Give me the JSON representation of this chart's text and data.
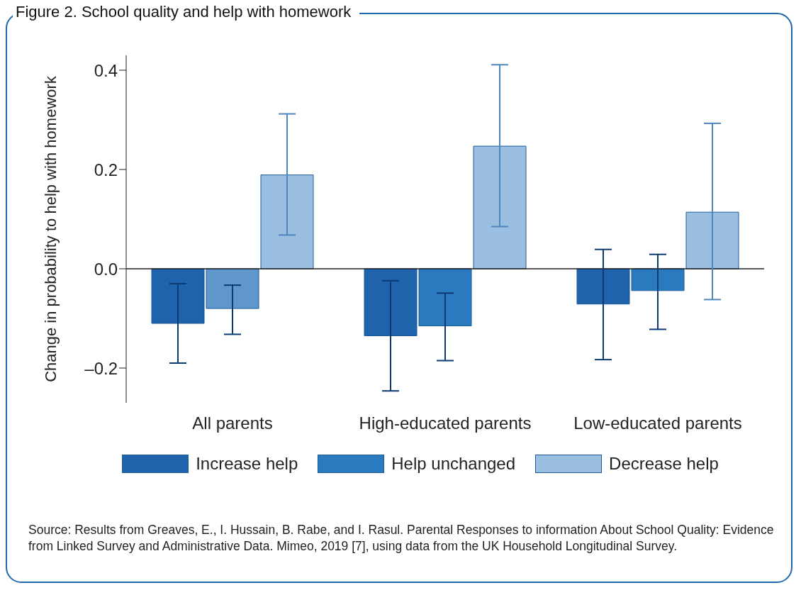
{
  "chart_data": {
    "type": "bar",
    "title": "Figure 2. School quality and help with homework",
    "ylabel": "Change in probability to help with homework",
    "categories": [
      "All parents",
      "High-educated parents",
      "Low-educated parents"
    ],
    "series": [
      {
        "name": "Increase help",
        "color": "#1f63ad",
        "values": [
          -0.11,
          -0.135,
          -0.071
        ],
        "errors": [
          [
            -0.19,
            -0.03
          ],
          [
            -0.246,
            -0.024
          ],
          [
            -0.183,
            0.039
          ]
        ]
      },
      {
        "name": "Help unchanged",
        "color": "#2a7abf",
        "colors": [
          "#5f97cc",
          "#2a7abf",
          "#2a7abf"
        ],
        "values": [
          -0.08,
          -0.115,
          -0.044
        ],
        "errors": [
          [
            -0.132,
            -0.033
          ],
          [
            -0.185,
            -0.049
          ],
          [
            -0.122,
            0.029
          ]
        ]
      },
      {
        "name": "Decrease help",
        "color": "#9bbfe0",
        "values": [
          0.189,
          0.247,
          0.114
        ],
        "errors": [
          [
            0.068,
            0.312
          ],
          [
            0.085,
            0.411
          ],
          [
            -0.062,
            0.293
          ]
        ]
      }
    ],
    "ylim": [
      -0.27,
      0.43
    ],
    "yticks": [
      {
        "value": -0.2,
        "label": "–0.2"
      },
      {
        "value": 0,
        "label": "0.0"
      },
      {
        "value": 0.2,
        "label": "0.2"
      },
      {
        "value": 0.4,
        "label": "0.4"
      }
    ],
    "legend": "bottom",
    "annotations": [
      "Source: Results from Greaves, E., I. Hussain, B. Rabe, and I. Rasul. Parental Responses to information About School Quality: Evidence from Linked Survey and Administrative Data. Mimeo, 2019 [7], using data from the UK Household Longitudinal Survey."
    ]
  }
}
